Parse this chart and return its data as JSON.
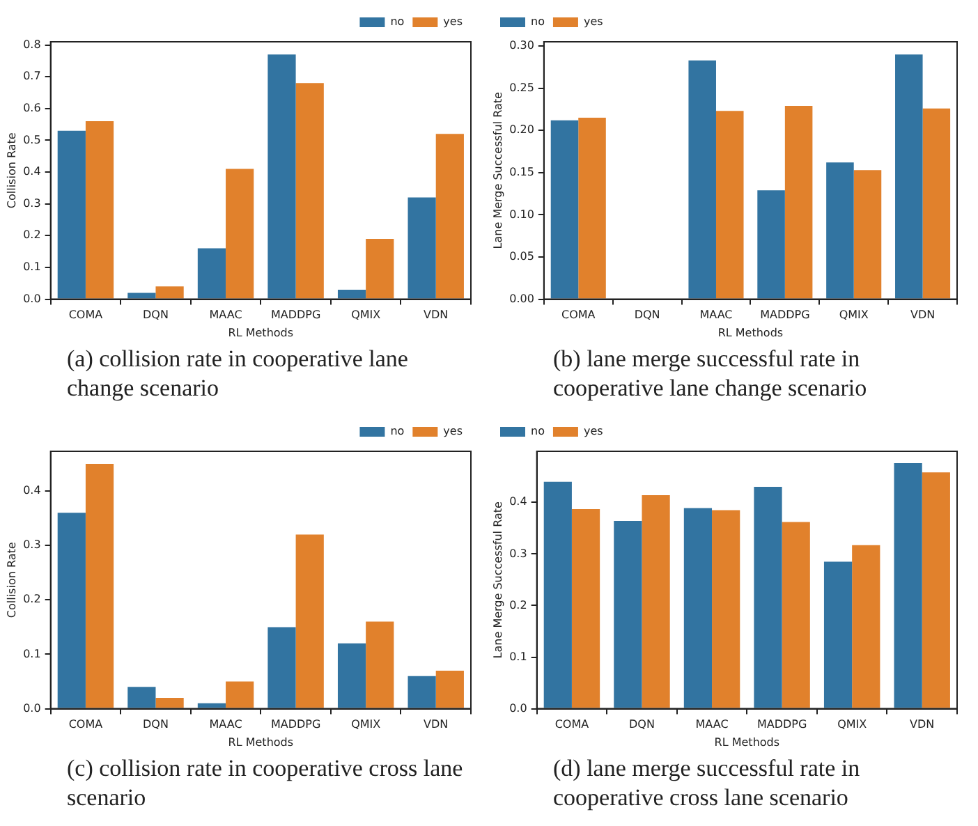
{
  "chart_data": [
    {
      "type": "bar",
      "title": "(a) collision rate in cooperative lane change scenario",
      "xlabel": "RL Methods",
      "ylabel": "Collision Rate",
      "categories": [
        "COMA",
        "DQN",
        "MAAC",
        "MADDPG",
        "QMIX",
        "VDN"
      ],
      "series": [
        {
          "name": "no",
          "color": "#3274a1",
          "values": [
            0.53,
            0.02,
            0.16,
            0.77,
            0.03,
            0.32
          ]
        },
        {
          "name": "yes",
          "color": "#e1812c",
          "values": [
            0.56,
            0.04,
            0.41,
            0.68,
            0.19,
            0.52
          ]
        }
      ],
      "ylim": [
        0,
        0.81
      ],
      "yticks": [
        {
          "value": 0,
          "label": "0.0"
        },
        {
          "value": 0.1,
          "label": "0.1"
        },
        {
          "value": 0.2,
          "label": "0.2"
        },
        {
          "value": 0.3,
          "label": "0.3"
        },
        {
          "value": 0.4,
          "label": "0.4"
        },
        {
          "value": 0.5,
          "label": "0.5"
        },
        {
          "value": 0.6,
          "label": "0.6"
        },
        {
          "value": 0.7,
          "label": "0.7"
        },
        {
          "value": 0.8,
          "label": "0.8"
        }
      ],
      "grid": false,
      "legend": "top right"
    },
    {
      "type": "bar",
      "title": "(b) lane merge successful rate in cooperative lane change scenario",
      "xlabel": "RL Methods",
      "ylabel": "Lane Merge Successful Rate",
      "categories": [
        "COMA",
        "DQN",
        "MAAC",
        "MADDPG",
        "QMIX",
        "VDN"
      ],
      "series": [
        {
          "name": "no",
          "color": "#3274a1",
          "values": [
            0.212,
            0,
            0.283,
            0.129,
            0.162,
            0.29
          ]
        },
        {
          "name": "yes",
          "color": "#e1812c",
          "values": [
            0.215,
            0,
            0.223,
            0.229,
            0.153,
            0.226
          ]
        }
      ],
      "ylim": [
        0,
        0.305
      ],
      "yticks": [
        {
          "value": 0,
          "label": "0.00"
        },
        {
          "value": 0.05,
          "label": "0.05"
        },
        {
          "value": 0.1,
          "label": "0.10"
        },
        {
          "value": 0.15,
          "label": "0.15"
        },
        {
          "value": 0.2,
          "label": "0.20"
        },
        {
          "value": 0.25,
          "label": "0.25"
        },
        {
          "value": 0.3,
          "label": "0.30"
        }
      ],
      "grid": false,
      "legend": "top left"
    },
    {
      "type": "bar",
      "title": "(c) collision rate in cooperative cross lane scenario",
      "xlabel": "RL Methods",
      "ylabel": "Collision Rate",
      "categories": [
        "COMA",
        "DQN",
        "MAAC",
        "MADDPG",
        "QMIX",
        "VDN"
      ],
      "series": [
        {
          "name": "no",
          "color": "#3274a1",
          "values": [
            0.36,
            0.04,
            0.01,
            0.15,
            0.12,
            0.06
          ]
        },
        {
          "name": "yes",
          "color": "#e1812c",
          "values": [
            0.45,
            0.02,
            0.05,
            0.32,
            0.16,
            0.07
          ]
        }
      ],
      "ylim": [
        0,
        0.473
      ],
      "yticks": [
        {
          "value": 0,
          "label": "0.0"
        },
        {
          "value": 0.1,
          "label": "0.1"
        },
        {
          "value": 0.2,
          "label": "0.2"
        },
        {
          "value": 0.3,
          "label": "0.3"
        },
        {
          "value": 0.4,
          "label": "0.4"
        }
      ],
      "grid": false,
      "legend": "top right"
    },
    {
      "type": "bar",
      "title": "(d) lane merge successful rate in cooperative cross lane scenario",
      "xlabel": "RL Methods",
      "ylabel": "Lane Merge Successful Rate",
      "categories": [
        "COMA",
        "DQN",
        "MAAC",
        "MADDPG",
        "QMIX",
        "VDN"
      ],
      "series": [
        {
          "name": "no",
          "color": "#3274a1",
          "values": [
            0.44,
            0.364,
            0.389,
            0.43,
            0.285,
            0.476
          ]
        },
        {
          "name": "yes",
          "color": "#e1812c",
          "values": [
            0.387,
            0.414,
            0.385,
            0.362,
            0.317,
            0.458
          ]
        }
      ],
      "ylim": [
        0,
        0.499
      ],
      "yticks": [
        {
          "value": 0,
          "label": "0.0"
        },
        {
          "value": 0.1,
          "label": "0.1"
        },
        {
          "value": 0.2,
          "label": "0.2"
        },
        {
          "value": 0.3,
          "label": "0.3"
        },
        {
          "value": 0.4,
          "label": "0.4"
        }
      ],
      "grid": false,
      "legend": "top left"
    }
  ]
}
